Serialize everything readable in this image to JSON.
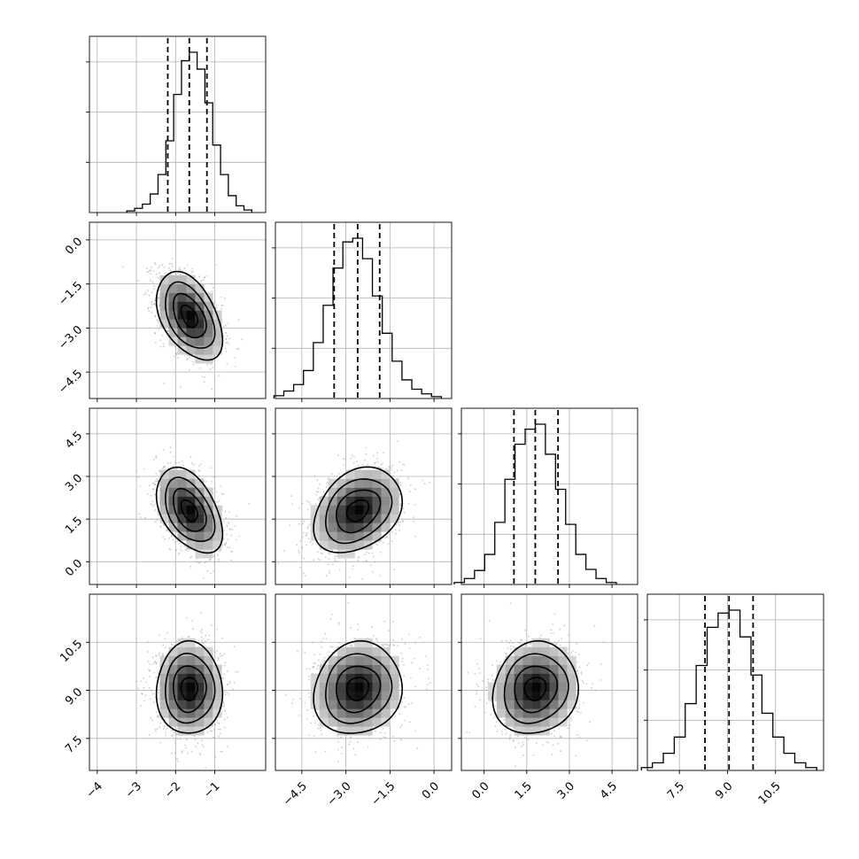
{
  "chart_data": {
    "type": "corner",
    "grid": true,
    "parameters": [
      {
        "median": -1.65,
        "quantiles": [
          -2.2,
          -1.65,
          -1.2
        ],
        "mean": -1.65,
        "sd": 0.42,
        "range": [
          -4.2,
          0.3
        ]
      },
      {
        "median": -2.6,
        "quantiles": [
          -3.4,
          -2.6,
          -1.85
        ],
        "mean": -2.6,
        "sd": 0.75,
        "range": [
          -5.4,
          0.6
        ]
      },
      {
        "median": 1.8,
        "quantiles": [
          1.05,
          1.8,
          2.6
        ],
        "mean": 1.8,
        "sd": 0.75,
        "range": [
          -0.8,
          5.4
        ]
      },
      {
        "median": 9.05,
        "quantiles": [
          8.3,
          9.05,
          9.8
        ],
        "mean": 9.05,
        "sd": 0.72,
        "range": [
          6.5,
          12.0
        ]
      }
    ],
    "x_tick_labels": [
      [
        "−4",
        "−3",
        "−2",
        "−1"
      ],
      [
        "−4.5",
        "−3.0",
        "−1.5",
        "0.0"
      ],
      [
        "0.0",
        "1.5",
        "3.0",
        "4.5"
      ],
      [
        "7.5",
        "9.0",
        "10.5"
      ]
    ],
    "x_tick_values": [
      [
        -4,
        -3,
        -2,
        -1
      ],
      [
        -4.5,
        -3.0,
        -1.5,
        0.0
      ],
      [
        0.0,
        1.5,
        3.0,
        4.5
      ],
      [
        7.5,
        9.0,
        10.5
      ]
    ],
    "y_tick_labels": [
      [],
      [
        "0.0",
        "−1.5",
        "−3.0",
        "−4.5"
      ],
      [
        "4.5",
        "3.0",
        "1.5",
        "0.0"
      ],
      [
        "10.5",
        "9.0",
        "7.5"
      ]
    ],
    "y_tick_values": [
      [],
      [
        0.0,
        -1.5,
        -3.0,
        -4.5
      ],
      [
        4.5,
        3.0,
        1.5,
        0.0
      ],
      [
        10.5,
        9.0,
        7.5
      ]
    ],
    "correlations": [
      [
        0,
        1,
        -0.45
      ],
      [
        0,
        2,
        -0.45
      ],
      [
        1,
        2,
        0.3
      ],
      [
        0,
        3,
        0.0
      ],
      [
        1,
        3,
        0.1
      ],
      [
        2,
        3,
        0.1
      ]
    ],
    "histogram_counts": [
      [
        2,
        5,
        10,
        22,
        45,
        85,
        140,
        180,
        190,
        170,
        130,
        80,
        45,
        20,
        8,
        3
      ],
      [
        3,
        8,
        15,
        30,
        60,
        100,
        140,
        168,
        172,
        150,
        110,
        70,
        40,
        20,
        10,
        5,
        2
      ],
      [
        2,
        6,
        14,
        30,
        62,
        105,
        140,
        155,
        160,
        130,
        95,
        60,
        30,
        15,
        6,
        2
      ],
      [
        3,
        8,
        18,
        35,
        70,
        110,
        150,
        165,
        168,
        140,
        100,
        60,
        35,
        18,
        8,
        3
      ]
    ],
    "colors": {
      "line": "#000000",
      "grid": "#b0b0b0",
      "quantile": "#000000",
      "scatter": "#9a9a9a"
    }
  }
}
